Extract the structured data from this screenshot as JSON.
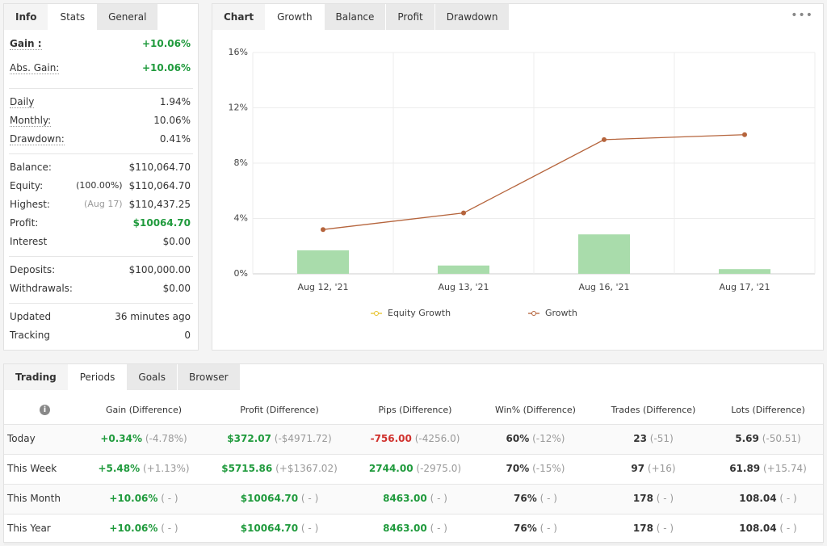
{
  "stats_panel": {
    "tabs": [
      "Info",
      "Stats",
      "General"
    ],
    "active": 1,
    "groups": [
      [
        {
          "label": "Gain :",
          "value": "+10.06%",
          "color": "green",
          "strong": true
        },
        {
          "label": "Abs. Gain:",
          "value": "+10.06%",
          "color": "green"
        }
      ],
      [
        {
          "label": "Daily",
          "value": "1.94%"
        },
        {
          "label": "Monthly:",
          "value": "10.06%"
        },
        {
          "label": "Drawdown:",
          "value": "0.41%"
        }
      ],
      [
        {
          "label": "Balance:",
          "value": "$110,064.70"
        },
        {
          "label": "Equity:",
          "note": "(100.00%)",
          "value": "$110,064.70"
        },
        {
          "label": "Highest:",
          "note": "(Aug 17)",
          "value": "$110,437.25"
        },
        {
          "label": "Profit:",
          "value": "$10064.70",
          "color": "green"
        },
        {
          "label": "Interest",
          "value": "$0.00"
        }
      ],
      [
        {
          "label": "Deposits:",
          "value": "$100,000.00"
        },
        {
          "label": "Withdrawals:",
          "value": "$0.00"
        }
      ],
      [
        {
          "label": "Updated",
          "value": "36 minutes ago"
        },
        {
          "label": "Tracking",
          "value": "0"
        }
      ]
    ]
  },
  "chart_panel": {
    "tabs": [
      "Chart",
      "Growth",
      "Balance",
      "Profit",
      "Drawdown"
    ],
    "active": 1
  },
  "chart_data": {
    "type": "line",
    "categories": [
      "Aug 12, '21",
      "Aug 13, '21",
      "Aug 16, '21",
      "Aug 17, '21"
    ],
    "series": [
      {
        "name": "Equity Growth",
        "color": "#e6c229",
        "values": [
          null,
          null,
          null,
          null
        ]
      },
      {
        "name": "Growth",
        "color": "#b5643c",
        "values": [
          3.2,
          4.4,
          9.7,
          10.06
        ]
      },
      {
        "type": "bar",
        "color": "#a9dcab",
        "values": [
          1.7,
          0.6,
          2.85,
          0.34
        ]
      }
    ],
    "ylim": [
      0,
      16
    ],
    "yticks": [
      {
        "value": 0,
        "label": "0%"
      },
      {
        "value": 4,
        "label": "4%"
      },
      {
        "value": 8,
        "label": "8%"
      },
      {
        "value": 12,
        "label": "12%"
      },
      {
        "value": 16,
        "label": "16%"
      }
    ],
    "grid": true
  },
  "periods_panel": {
    "tabs": [
      "Trading",
      "Periods",
      "Goals",
      "Browser"
    ],
    "active": 1,
    "columns": [
      "Gain (Difference)",
      "Profit (Difference)",
      "Pips (Difference)",
      "Win% (Difference)",
      "Trades (Difference)",
      "Lots (Difference)"
    ],
    "rows": [
      {
        "name": "Today",
        "cells": [
          {
            "main": "+0.34%",
            "diff": "(-4.78%)",
            "color": "green"
          },
          {
            "main": "$372.07",
            "diff": "(-$4971.72)",
            "color": "green"
          },
          {
            "main": "-756.00",
            "diff": "(-4256.0)",
            "color": "red"
          },
          {
            "main": "60%",
            "diff": "(-12%)"
          },
          {
            "main": "23",
            "diff": "(-51)"
          },
          {
            "main": "5.69",
            "diff": "(-50.51)"
          }
        ]
      },
      {
        "name": "This Week",
        "cells": [
          {
            "main": "+5.48%",
            "diff": "(+1.13%)",
            "color": "green"
          },
          {
            "main": "$5715.86",
            "diff": "(+$1367.02)",
            "color": "green"
          },
          {
            "main": "2744.00",
            "diff": "(-2975.0)",
            "color": "green"
          },
          {
            "main": "70%",
            "diff": "(-15%)"
          },
          {
            "main": "97",
            "diff": "(+16)"
          },
          {
            "main": "61.89",
            "diff": "(+15.74)"
          }
        ]
      },
      {
        "name": "This Month",
        "cells": [
          {
            "main": "+10.06%",
            "diff": "( - )",
            "color": "green"
          },
          {
            "main": "$10064.70",
            "diff": "( - )",
            "color": "green"
          },
          {
            "main": "8463.00",
            "diff": "( - )",
            "color": "green"
          },
          {
            "main": "76%",
            "diff": "( - )"
          },
          {
            "main": "178",
            "diff": "( - )"
          },
          {
            "main": "108.04",
            "diff": "( - )"
          }
        ]
      },
      {
        "name": "This Year",
        "cells": [
          {
            "main": "+10.06%",
            "diff": "( - )",
            "color": "green"
          },
          {
            "main": "$10064.70",
            "diff": "( - )",
            "color": "green"
          },
          {
            "main": "8463.00",
            "diff": "( - )",
            "color": "green"
          },
          {
            "main": "76%",
            "diff": "( - )"
          },
          {
            "main": "178",
            "diff": "( - )"
          },
          {
            "main": "108.04",
            "diff": "( - )"
          }
        ]
      }
    ]
  }
}
